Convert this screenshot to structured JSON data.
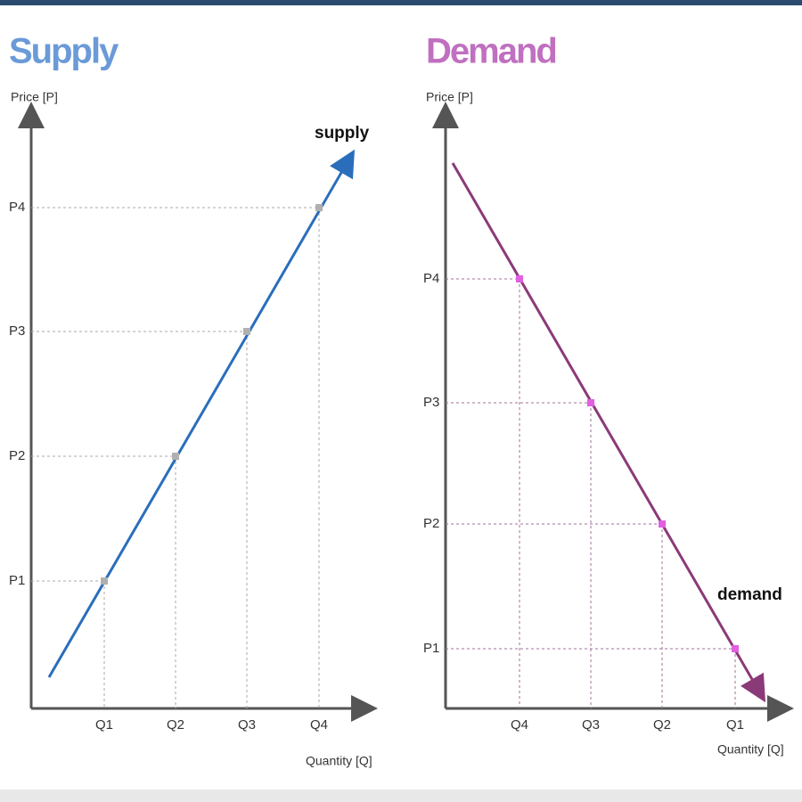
{
  "supply": {
    "title": "Supply",
    "y_label": "Price [P]",
    "x_label": "Quantity [Q]",
    "curve_label": "supply",
    "price_labels": [
      "P1",
      "P2",
      "P3",
      "P4"
    ],
    "quantity_labels": [
      "Q1",
      "Q2",
      "Q3",
      "Q4"
    ]
  },
  "demand": {
    "title": "Demand",
    "y_label": "Price [P]",
    "x_label": "Quantity [Q]",
    "curve_label": "demand",
    "price_labels": [
      "P4",
      "P3",
      "P2",
      "P1"
    ],
    "quantity_labels": [
      "Q4",
      "Q3",
      "Q2",
      "Q1"
    ]
  }
}
